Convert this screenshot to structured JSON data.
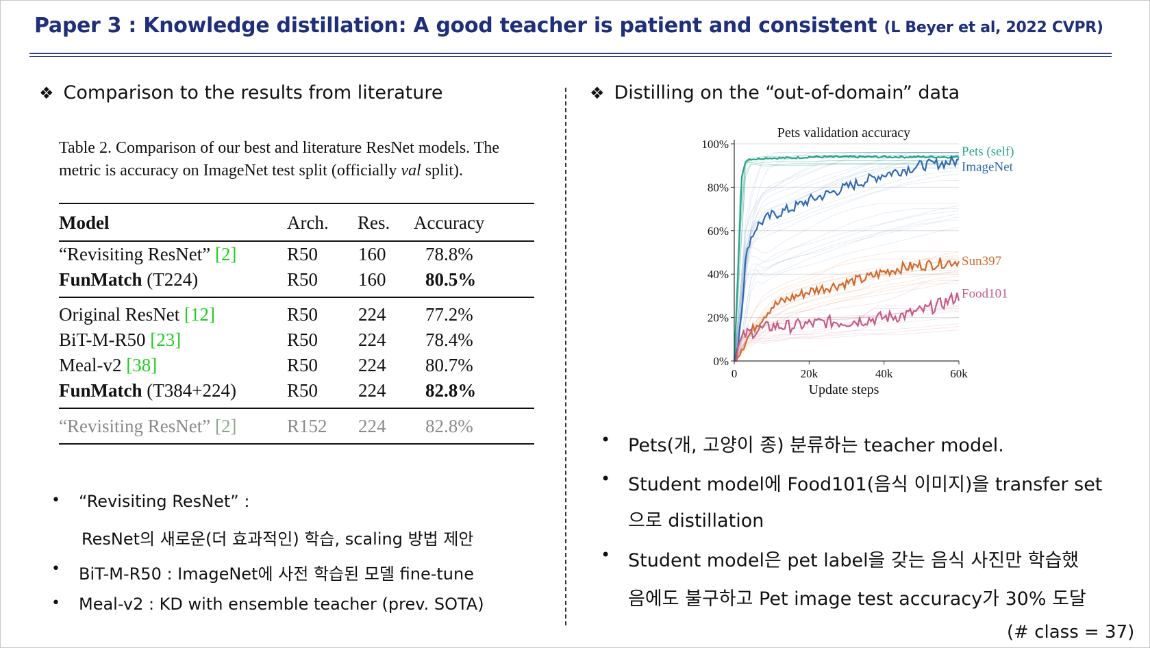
{
  "title": {
    "main": "Paper 3 : Knowledge distillation: A good teacher is patient and consistent",
    "citation": "(L Beyer et al, 2022 CVPR)"
  },
  "left": {
    "heading": "Comparison to the results from literature",
    "caption_line1": "Table 2. Comparison of our best and literature ResNet models. The",
    "caption_line2_a": "metric is accuracy on ImageNet test split (officially ",
    "caption_line2_italic": "val",
    "caption_line2_b": " split).",
    "table": {
      "headers": [
        "Model",
        "Arch.",
        "Res.",
        "Accuracy"
      ],
      "rows": [
        {
          "model": "“Revisiting ResNet”",
          "ref": "[2]",
          "arch": "R50",
          "res": "160",
          "acc": "78.8%"
        },
        {
          "model": "FunMatch",
          "suffix": " (T224)",
          "arch": "R50",
          "res": "160",
          "acc": "80.5%"
        },
        {
          "model": "Original ResNet",
          "ref": "[12]",
          "arch": "R50",
          "res": "224",
          "acc": "77.2%"
        },
        {
          "model": "BiT-M-R50",
          "ref": "[23]",
          "arch": "R50",
          "res": "224",
          "acc": "78.4%"
        },
        {
          "model": "Meal-v2",
          "ref": "[38]",
          "arch": "R50",
          "res": "224",
          "acc": "80.7%"
        },
        {
          "model": "FunMatch",
          "suffix": " (T384+224)",
          "arch": "R50",
          "res": "224",
          "acc": "82.8%"
        },
        {
          "model": "“Revisiting ResNet”",
          "ref": "[2]",
          "arch": "R152",
          "res": "224",
          "acc": "82.8%"
        }
      ]
    },
    "bullets": [
      "“Revisiting ResNet” :",
      "ResNet의 새로운(더 효과적인) 학습, scaling 방법 제안",
      "BiT-M-R50 : ImageNet에 사전 학습된 모델 fine-tune",
      "Meal-v2 : KD with ensemble teacher (prev. SOTA)"
    ]
  },
  "right": {
    "heading": "Distilling on the “out-of-domain” data",
    "bullets": [
      "Pets(개, 고양이 종) 분류하는 teacher model.",
      "Student model에 Food101(음식 이미지)을 transfer set",
      "으로 distillation",
      "Student model은 pet label을 갖는 음식 사진만 학습했",
      "음에도 불구하고 Pet image test accuracy가 30% 도달",
      "(# class = 37)"
    ]
  },
  "chart_data": {
    "type": "line",
    "title": "Pets validation accuracy",
    "xlabel": "Update steps",
    "ylabel": "",
    "xlim": [
      0,
      60000
    ],
    "ylim": [
      0,
      100
    ],
    "xticks": [
      "0",
      "20k",
      "40k",
      "60k"
    ],
    "yticks": [
      "0%",
      "20%",
      "40%",
      "60%",
      "80%",
      "100%"
    ],
    "grid": true,
    "legend": "inline-right",
    "x": [
      0,
      1000,
      2000,
      3000,
      4000,
      6000,
      8000,
      10000,
      15000,
      20000,
      25000,
      30000,
      35000,
      40000,
      45000,
      50000,
      55000,
      60000
    ],
    "series": [
      {
        "name": "Pets (self)",
        "color": "#2aa38a",
        "values": [
          0,
          40,
          85,
          92,
          93,
          93,
          93.5,
          93.5,
          93.5,
          94,
          94,
          94,
          94,
          94,
          94,
          94,
          94,
          94
        ]
      },
      {
        "name": "ImageNet",
        "color": "#2f68b0",
        "values": [
          0,
          8,
          25,
          45,
          55,
          62,
          65,
          67,
          70,
          74,
          77,
          80,
          83,
          86,
          88,
          90,
          91,
          92
        ]
      },
      {
        "name": "Sun397",
        "color": "#d2692c",
        "values": [
          0,
          3,
          6,
          9,
          12,
          17,
          21,
          25,
          29,
          32,
          34,
          36,
          38,
          41,
          43,
          44,
          45,
          46
        ]
      },
      {
        "name": "Food101",
        "color": "#c45a85",
        "values": [
          0,
          6,
          10,
          12,
          13,
          14,
          15,
          16,
          16,
          17,
          18,
          18,
          19,
          20,
          21,
          23,
          26,
          30
        ]
      }
    ]
  }
}
